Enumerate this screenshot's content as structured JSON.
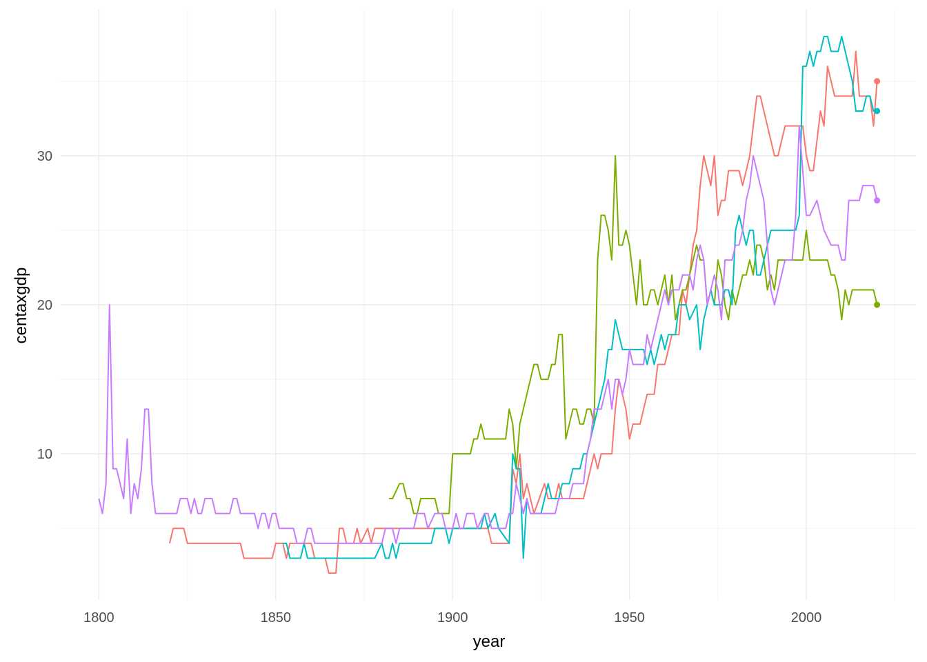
{
  "chart_data": {
    "type": "line",
    "x_label": "year",
    "y_label": "centaxgdp",
    "xlim": [
      1789,
      2031
    ],
    "ylim": [
      0.2,
      39.8
    ],
    "xticks": [
      1800,
      1850,
      1900,
      1950,
      2000
    ],
    "yticks": [
      10,
      20,
      30
    ],
    "x_minor_ticks": [
      1825,
      1875,
      1925,
      1975,
      2025
    ],
    "y_minor_ticks": [
      5,
      15,
      25,
      35
    ],
    "grid": true,
    "end_points": true,
    "series": [
      {
        "color": "#F8766D",
        "x": [
          1820,
          1821,
          1824,
          1825,
          1840,
          1841,
          1849,
          1850,
          1852,
          1853,
          1854,
          1860,
          1861,
          1864,
          1865,
          1867,
          1868,
          1869,
          1870,
          1872,
          1873,
          1874,
          1876,
          1877,
          1878,
          1910,
          1911,
          1916,
          1917,
          1918,
          1919,
          1920,
          1921,
          1922,
          1923,
          1926,
          1927,
          1929,
          1930,
          1931,
          1937,
          1939,
          1940,
          1941,
          1942,
          1945,
          1946,
          1947,
          1948,
          1949,
          1950,
          1951,
          1953,
          1954,
          1955,
          1957,
          1958,
          1960,
          1961,
          1962,
          1964,
          1965,
          1966,
          1968,
          1969,
          1970,
          1971,
          1972,
          1973,
          1974,
          1975,
          1976,
          1977,
          1978,
          1981,
          1982,
          1983,
          1984,
          1985,
          1986,
          1987,
          1988,
          1989,
          1990,
          1991,
          1992,
          1993,
          1994,
          1999,
          2000,
          2001,
          2002,
          2003,
          2004,
          2005,
          2006,
          2007,
          2008,
          2013,
          2014,
          2015,
          2018,
          2019,
          2020
        ],
        "values": [
          4,
          5,
          5,
          4,
          4,
          3,
          3,
          4,
          4,
          3,
          4,
          4,
          3,
          3,
          2,
          2,
          5,
          5,
          4,
          4,
          5,
          4,
          5,
          4,
          5,
          5,
          4,
          4,
          9,
          8,
          10,
          7,
          8,
          7,
          6,
          8,
          7,
          7,
          8,
          7,
          7,
          9,
          10,
          9,
          10,
          10,
          13,
          15,
          14,
          13,
          11,
          12,
          12,
          13,
          14,
          14,
          16,
          16,
          17,
          18,
          18,
          21,
          20,
          24,
          25,
          28,
          30,
          29,
          28,
          30,
          26,
          27,
          27,
          29,
          29,
          28,
          29,
          30,
          32,
          34,
          34,
          33,
          32,
          31,
          30,
          30,
          31,
          32,
          32,
          30,
          29,
          29,
          31,
          33,
          32,
          36,
          35,
          34,
          34,
          37,
          34,
          34,
          32,
          35
        ]
      },
      {
        "color": "#7CAE00",
        "x": [
          1882,
          1883,
          1885,
          1886,
          1887,
          1888,
          1889,
          1890,
          1891,
          1895,
          1896,
          1899,
          1900,
          1905,
          1906,
          1907,
          1908,
          1909,
          1915,
          1916,
          1917,
          1918,
          1919,
          1920,
          1921,
          1922,
          1923,
          1924,
          1925,
          1927,
          1928,
          1929,
          1930,
          1931,
          1932,
          1933,
          1934,
          1935,
          1936,
          1937,
          1938,
          1939,
          1940,
          1941,
          1942,
          1943,
          1944,
          1945,
          1946,
          1947,
          1948,
          1949,
          1950,
          1951,
          1952,
          1953,
          1954,
          1955,
          1956,
          1957,
          1958,
          1959,
          1960,
          1961,
          1962,
          1963,
          1964,
          1965,
          1966,
          1967,
          1968,
          1969,
          1970,
          1971,
          1972,
          1973,
          1974,
          1975,
          1976,
          1977,
          1978,
          1979,
          1980,
          1981,
          1982,
          1983,
          1984,
          1985,
          1986,
          1987,
          1988,
          1989,
          1990,
          1991,
          1992,
          1993,
          1999,
          2000,
          2001,
          2006,
          2007,
          2008,
          2009,
          2010,
          2011,
          2012,
          2013,
          2019,
          2020
        ],
        "values": [
          7,
          7,
          8,
          8,
          7,
          7,
          6,
          6,
          7,
          7,
          6,
          6,
          10,
          10,
          11,
          11,
          12,
          11,
          11,
          13,
          12,
          9,
          12,
          13,
          14,
          15,
          16,
          16,
          15,
          15,
          16,
          16,
          18,
          18,
          11,
          12,
          13,
          13,
          12,
          12,
          13,
          13,
          12,
          23,
          26,
          26,
          25,
          23,
          30,
          24,
          24,
          25,
          24,
          22,
          20,
          23,
          20,
          20,
          21,
          21,
          20,
          21,
          22,
          20,
          22,
          19,
          20,
          21,
          21,
          22,
          23,
          24,
          23,
          23,
          20,
          21,
          20,
          23,
          22,
          20,
          19,
          21,
          20,
          21,
          22,
          22,
          23,
          22,
          24,
          24,
          23,
          21,
          22,
          21,
          23,
          23,
          23,
          25,
          23,
          23,
          22,
          22,
          21,
          19,
          21,
          20,
          21,
          21,
          20
        ]
      },
      {
        "color": "#00BFC4",
        "x": [
          1852,
          1853,
          1854,
          1857,
          1858,
          1859,
          1878,
          1880,
          1881,
          1882,
          1883,
          1884,
          1885,
          1894,
          1895,
          1898,
          1899,
          1900,
          1908,
          1909,
          1910,
          1912,
          1913,
          1916,
          1917,
          1918,
          1919,
          1920,
          1921,
          1922,
          1925,
          1926,
          1927,
          1928,
          1930,
          1931,
          1933,
          1934,
          1936,
          1937,
          1938,
          1939,
          1940,
          1941,
          1942,
          1943,
          1944,
          1945,
          1946,
          1947,
          1948,
          1954,
          1955,
          1956,
          1957,
          1958,
          1959,
          1960,
          1961,
          1963,
          1964,
          1966,
          1967,
          1969,
          1970,
          1971,
          1972,
          1973,
          1974,
          1976,
          1977,
          1978,
          1979,
          1980,
          1981,
          1983,
          1984,
          1985,
          1986,
          1987,
          1988,
          1989,
          1990,
          1997,
          1998,
          1999,
          2000,
          2001,
          2002,
          2003,
          2004,
          2005,
          2006,
          2007,
          2009,
          2010,
          2012,
          2013,
          2014,
          2016,
          2017,
          2018,
          2019,
          2020
        ],
        "values": [
          4,
          4,
          3,
          3,
          4,
          3,
          3,
          4,
          3,
          3,
          4,
          3,
          4,
          4,
          5,
          5,
          4,
          5,
          5,
          6,
          5,
          6,
          5,
          4,
          10,
          9,
          9,
          3,
          7,
          6,
          6,
          7,
          8,
          7,
          7,
          8,
          8,
          9,
          9,
          10,
          10,
          11,
          12,
          13,
          14,
          15,
          17,
          17,
          19,
          18,
          17,
          17,
          16,
          17,
          16,
          17,
          18,
          17,
          18,
          18,
          20,
          20,
          19,
          20,
          17,
          19,
          20,
          21,
          20,
          20,
          21,
          21,
          20,
          25,
          26,
          24,
          25,
          25,
          22,
          22,
          23,
          24,
          25,
          25,
          26,
          36,
          36,
          37,
          36,
          37,
          37,
          38,
          38,
          37,
          37,
          38,
          36,
          35,
          33,
          33,
          34,
          34,
          33,
          33
        ]
      },
      {
        "color": "#C77CFF",
        "x": [
          1800,
          1801,
          1802,
          1803,
          1804,
          1805,
          1806,
          1807,
          1808,
          1809,
          1810,
          1811,
          1812,
          1813,
          1814,
          1815,
          1816,
          1822,
          1823,
          1825,
          1826,
          1827,
          1828,
          1829,
          1830,
          1832,
          1833,
          1837,
          1838,
          1839,
          1840,
          1844,
          1845,
          1846,
          1847,
          1848,
          1849,
          1850,
          1851,
          1855,
          1856,
          1858,
          1859,
          1860,
          1861,
          1880,
          1881,
          1883,
          1884,
          1885,
          1889,
          1890,
          1892,
          1893,
          1895,
          1897,
          1898,
          1900,
          1901,
          1902,
          1903,
          1904,
          1906,
          1907,
          1909,
          1910,
          1911,
          1915,
          1916,
          1917,
          1918,
          1919,
          1920,
          1921,
          1922,
          1929,
          1930,
          1933,
          1934,
          1937,
          1938,
          1939,
          1940,
          1942,
          1943,
          1944,
          1945,
          1946,
          1947,
          1948,
          1949,
          1950,
          1951,
          1954,
          1955,
          1956,
          1957,
          1958,
          1960,
          1961,
          1962,
          1964,
          1965,
          1967,
          1968,
          1969,
          1970,
          1971,
          1972,
          1973,
          1974,
          1975,
          1976,
          1977,
          1979,
          1980,
          1981,
          1982,
          1983,
          1984,
          1985,
          1986,
          1987,
          1988,
          1989,
          1990,
          1991,
          1992,
          1993,
          1994,
          1996,
          1997,
          1998,
          1999,
          2000,
          2001,
          2003,
          2005,
          2007,
          2009,
          2010,
          2011,
          2012,
          2015,
          2016,
          2019,
          2020
        ],
        "values": [
          7,
          6,
          8,
          20,
          9,
          9,
          8,
          7,
          11,
          6,
          8,
          7,
          9,
          13,
          13,
          8,
          6,
          6,
          7,
          7,
          6,
          7,
          6,
          6,
          7,
          7,
          6,
          6,
          7,
          7,
          6,
          6,
          5,
          6,
          6,
          5,
          6,
          6,
          5,
          5,
          4,
          4,
          5,
          5,
          4,
          4,
          5,
          5,
          4,
          5,
          5,
          6,
          6,
          5,
          6,
          6,
          5,
          5,
          6,
          5,
          5,
          6,
          6,
          5,
          6,
          6,
          5,
          5,
          6,
          6,
          8,
          7,
          6,
          7,
          6,
          6,
          7,
          7,
          8,
          8,
          10,
          11,
          13,
          13,
          14,
          15,
          13,
          15,
          15,
          14,
          15,
          17,
          16,
          16,
          18,
          17,
          18,
          19,
          21,
          20,
          21,
          21,
          22,
          22,
          21,
          23,
          24,
          23,
          20,
          21,
          22,
          21,
          19,
          23,
          23,
          24,
          24,
          25,
          27,
          28,
          30,
          29,
          28,
          27,
          24,
          21,
          20,
          21,
          22,
          23,
          23,
          26,
          32,
          29,
          26,
          26,
          27,
          25,
          24,
          24,
          23,
          23,
          27,
          27,
          28,
          28,
          27
        ]
      }
    ]
  }
}
